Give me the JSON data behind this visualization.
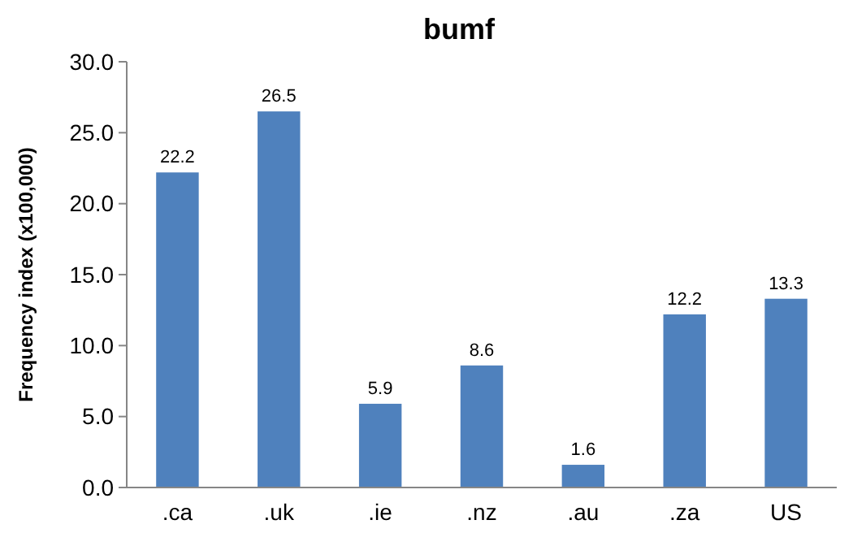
{
  "chart_data": {
    "type": "bar",
    "title": "bumf",
    "ylabel": "Frequency index (x100,000)",
    "categories": [
      ".ca",
      ".uk",
      ".ie",
      ".nz",
      ".au",
      ".za",
      "US"
    ],
    "values": [
      22.2,
      26.5,
      5.9,
      8.6,
      1.6,
      12.2,
      13.3
    ],
    "value_labels": [
      "22.2",
      "26.5",
      "5.9",
      "8.6",
      "1.6",
      "12.2",
      "13.3"
    ],
    "color": "#4f81bd",
    "ylim": [
      0,
      30
    ],
    "yticks": [
      {
        "value": 0,
        "label": "0.0"
      },
      {
        "value": 5,
        "label": "5.0"
      },
      {
        "value": 10,
        "label": "10.0"
      },
      {
        "value": 15,
        "label": "15.0"
      },
      {
        "value": 20,
        "label": "20.0"
      },
      {
        "value": 25,
        "label": "25.0"
      },
      {
        "value": 30,
        "label": "30.0"
      }
    ],
    "grid": false
  }
}
